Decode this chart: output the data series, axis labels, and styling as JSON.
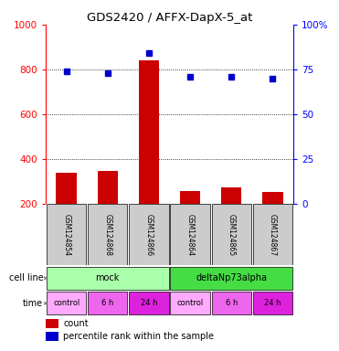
{
  "title": "GDS2420 / AFFX-DapX-5_at",
  "samples": [
    "GSM124854",
    "GSM124868",
    "GSM124866",
    "GSM124864",
    "GSM124865",
    "GSM124867"
  ],
  "counts": [
    340,
    348,
    840,
    258,
    275,
    255
  ],
  "percentile_ranks": [
    74,
    73,
    84,
    71,
    71,
    70
  ],
  "cell_lines": [
    {
      "label": "mock",
      "span": [
        0,
        3
      ],
      "color": "#aaffaa"
    },
    {
      "label": "deltaNp73alpha",
      "span": [
        3,
        6
      ],
      "color": "#44dd44"
    }
  ],
  "time_entries": [
    {
      "label": "control",
      "color": "#ffaaff"
    },
    {
      "label": "6 h",
      "color": "#ee66ee"
    },
    {
      "label": "24 h",
      "color": "#dd22dd"
    },
    {
      "label": "control",
      "color": "#ffaaff"
    },
    {
      "label": "6 h",
      "color": "#ee66ee"
    },
    {
      "label": "24 h",
      "color": "#dd22dd"
    }
  ],
  "bar_color": "#cc0000",
  "dot_color": "#0000cc",
  "left_ylim": [
    200,
    1000
  ],
  "right_ylim": [
    0,
    100
  ],
  "left_yticks": [
    200,
    400,
    600,
    800,
    1000
  ],
  "right_yticks": [
    0,
    25,
    50,
    75,
    100
  ],
  "right_yticklabels": [
    "0",
    "25",
    "50",
    "75",
    "100%"
  ],
  "bg_color": "#ffffff",
  "sample_bg_color": "#cccccc",
  "bar_width": 0.5,
  "height_ratios": [
    3.2,
    1.1,
    0.45,
    0.45,
    0.5
  ]
}
